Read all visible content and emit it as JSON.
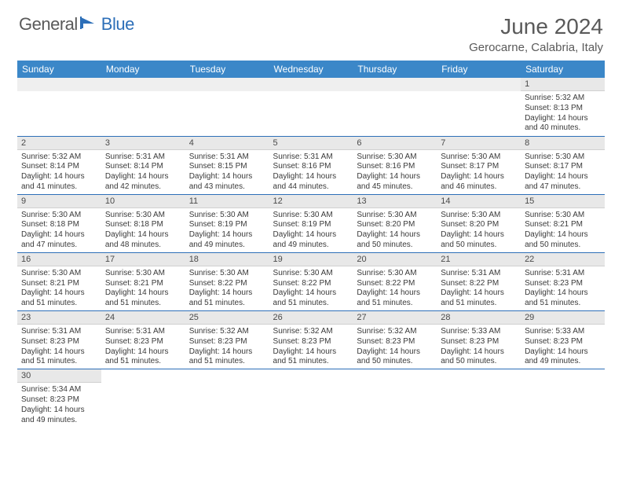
{
  "logo": {
    "text1": "General",
    "text2": "Blue"
  },
  "header": {
    "month_title": "June 2024",
    "location": "Gerocarne, Calabria, Italy"
  },
  "colors": {
    "header_bg": "#3b87c8",
    "header_text": "#ffffff",
    "daynum_bg": "#e8e8e8",
    "row_divider": "#2d6fb8",
    "text": "#3a3a3a",
    "title": "#5a5a5a",
    "logo_blue": "#2d6fb8"
  },
  "weekdays": [
    "Sunday",
    "Monday",
    "Tuesday",
    "Wednesday",
    "Thursday",
    "Friday",
    "Saturday"
  ],
  "weeks": [
    [
      null,
      null,
      null,
      null,
      null,
      null,
      {
        "n": "1",
        "sr": "5:32 AM",
        "ss": "8:13 PM",
        "dl": "14 hours and 40 minutes."
      }
    ],
    [
      {
        "n": "2",
        "sr": "5:32 AM",
        "ss": "8:14 PM",
        "dl": "14 hours and 41 minutes."
      },
      {
        "n": "3",
        "sr": "5:31 AM",
        "ss": "8:14 PM",
        "dl": "14 hours and 42 minutes."
      },
      {
        "n": "4",
        "sr": "5:31 AM",
        "ss": "8:15 PM",
        "dl": "14 hours and 43 minutes."
      },
      {
        "n": "5",
        "sr": "5:31 AM",
        "ss": "8:16 PM",
        "dl": "14 hours and 44 minutes."
      },
      {
        "n": "6",
        "sr": "5:30 AM",
        "ss": "8:16 PM",
        "dl": "14 hours and 45 minutes."
      },
      {
        "n": "7",
        "sr": "5:30 AM",
        "ss": "8:17 PM",
        "dl": "14 hours and 46 minutes."
      },
      {
        "n": "8",
        "sr": "5:30 AM",
        "ss": "8:17 PM",
        "dl": "14 hours and 47 minutes."
      }
    ],
    [
      {
        "n": "9",
        "sr": "5:30 AM",
        "ss": "8:18 PM",
        "dl": "14 hours and 47 minutes."
      },
      {
        "n": "10",
        "sr": "5:30 AM",
        "ss": "8:18 PM",
        "dl": "14 hours and 48 minutes."
      },
      {
        "n": "11",
        "sr": "5:30 AM",
        "ss": "8:19 PM",
        "dl": "14 hours and 49 minutes."
      },
      {
        "n": "12",
        "sr": "5:30 AM",
        "ss": "8:19 PM",
        "dl": "14 hours and 49 minutes."
      },
      {
        "n": "13",
        "sr": "5:30 AM",
        "ss": "8:20 PM",
        "dl": "14 hours and 50 minutes."
      },
      {
        "n": "14",
        "sr": "5:30 AM",
        "ss": "8:20 PM",
        "dl": "14 hours and 50 minutes."
      },
      {
        "n": "15",
        "sr": "5:30 AM",
        "ss": "8:21 PM",
        "dl": "14 hours and 50 minutes."
      }
    ],
    [
      {
        "n": "16",
        "sr": "5:30 AM",
        "ss": "8:21 PM",
        "dl": "14 hours and 51 minutes."
      },
      {
        "n": "17",
        "sr": "5:30 AM",
        "ss": "8:21 PM",
        "dl": "14 hours and 51 minutes."
      },
      {
        "n": "18",
        "sr": "5:30 AM",
        "ss": "8:22 PM",
        "dl": "14 hours and 51 minutes."
      },
      {
        "n": "19",
        "sr": "5:30 AM",
        "ss": "8:22 PM",
        "dl": "14 hours and 51 minutes."
      },
      {
        "n": "20",
        "sr": "5:30 AM",
        "ss": "8:22 PM",
        "dl": "14 hours and 51 minutes."
      },
      {
        "n": "21",
        "sr": "5:31 AM",
        "ss": "8:22 PM",
        "dl": "14 hours and 51 minutes."
      },
      {
        "n": "22",
        "sr": "5:31 AM",
        "ss": "8:23 PM",
        "dl": "14 hours and 51 minutes."
      }
    ],
    [
      {
        "n": "23",
        "sr": "5:31 AM",
        "ss": "8:23 PM",
        "dl": "14 hours and 51 minutes."
      },
      {
        "n": "24",
        "sr": "5:31 AM",
        "ss": "8:23 PM",
        "dl": "14 hours and 51 minutes."
      },
      {
        "n": "25",
        "sr": "5:32 AM",
        "ss": "8:23 PM",
        "dl": "14 hours and 51 minutes."
      },
      {
        "n": "26",
        "sr": "5:32 AM",
        "ss": "8:23 PM",
        "dl": "14 hours and 51 minutes."
      },
      {
        "n": "27",
        "sr": "5:32 AM",
        "ss": "8:23 PM",
        "dl": "14 hours and 50 minutes."
      },
      {
        "n": "28",
        "sr": "5:33 AM",
        "ss": "8:23 PM",
        "dl": "14 hours and 50 minutes."
      },
      {
        "n": "29",
        "sr": "5:33 AM",
        "ss": "8:23 PM",
        "dl": "14 hours and 49 minutes."
      }
    ],
    [
      {
        "n": "30",
        "sr": "5:34 AM",
        "ss": "8:23 PM",
        "dl": "14 hours and 49 minutes."
      },
      null,
      null,
      null,
      null,
      null,
      null
    ]
  ],
  "labels": {
    "sunrise": "Sunrise:",
    "sunset": "Sunset:",
    "daylight": "Daylight:"
  }
}
